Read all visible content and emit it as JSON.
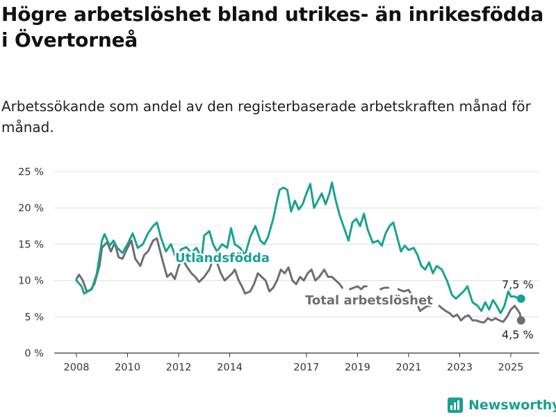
{
  "title": "Högre arbetslöshet bland utrikes- än inrikesfödda i Övertorneå",
  "subtitle": "Arbetssökande som andel av den registerbaserade arbetskraften månad för månad.",
  "brand": {
    "name": "Newsworthy",
    "icon": "bar-chart-logo-icon"
  },
  "colors": {
    "utlandsfodda": "#18a292",
    "total": "#6e6e72",
    "grid": "#dddddd",
    "axis": "#333333"
  },
  "chart_data": {
    "type": "line",
    "y_ticks": [
      {
        "value": 0,
        "label": "0 %"
      },
      {
        "value": 5,
        "label": "5 %"
      },
      {
        "value": 10,
        "label": "10 %"
      },
      {
        "value": 15,
        "label": "15 %"
      },
      {
        "value": 20,
        "label": "20 %"
      },
      {
        "value": 25,
        "label": "25 %"
      }
    ],
    "x_ticks": [
      {
        "value": 2008,
        "label": "2008"
      },
      {
        "value": 2010,
        "label": "2010"
      },
      {
        "value": 2012,
        "label": "2012"
      },
      {
        "value": 2014,
        "label": "2014"
      },
      {
        "value": 2017,
        "label": "2017"
      },
      {
        "value": 2019,
        "label": "2019"
      },
      {
        "value": 2021,
        "label": "2021"
      },
      {
        "value": 2023,
        "label": "2023"
      },
      {
        "value": 2025,
        "label": "2025"
      }
    ],
    "xlim": [
      2008,
      2025.5
    ],
    "ylim": [
      0,
      25
    ],
    "grid": true,
    "series": [
      {
        "name": "Utlandsfödda",
        "end_label": "7,5 %",
        "points": [
          [
            2008.0,
            10
          ],
          [
            2008.2,
            9.2
          ],
          [
            2008.3,
            8.2
          ],
          [
            2008.45,
            8.5
          ],
          [
            2008.6,
            8.8
          ],
          [
            2008.8,
            11
          ],
          [
            2009.0,
            15.5
          ],
          [
            2009.1,
            16.4
          ],
          [
            2009.3,
            14.8
          ],
          [
            2009.45,
            15.5
          ],
          [
            2009.6,
            14.5
          ],
          [
            2009.8,
            13.8
          ],
          [
            2010.0,
            15
          ],
          [
            2010.2,
            16.5
          ],
          [
            2010.4,
            14.5
          ],
          [
            2010.6,
            15
          ],
          [
            2010.8,
            16.5
          ],
          [
            2011.0,
            17.5
          ],
          [
            2011.15,
            18
          ],
          [
            2011.3,
            16
          ],
          [
            2011.5,
            14
          ],
          [
            2011.7,
            15
          ],
          [
            2011.9,
            13
          ],
          [
            2012.1,
            14.3
          ],
          [
            2012.3,
            14.6
          ],
          [
            2012.5,
            13.8
          ],
          [
            2012.7,
            14.5
          ],
          [
            2012.9,
            13
          ],
          [
            2013.0,
            16.2
          ],
          [
            2013.2,
            16.8
          ],
          [
            2013.35,
            15
          ],
          [
            2013.5,
            14
          ],
          [
            2013.7,
            15
          ],
          [
            2013.9,
            14.5
          ],
          [
            2014.05,
            17.2
          ],
          [
            2014.2,
            15
          ],
          [
            2014.4,
            14.5
          ],
          [
            2014.6,
            13.5
          ],
          [
            2014.8,
            16
          ],
          [
            2015.0,
            17.5
          ],
          [
            2015.2,
            15.5
          ],
          [
            2015.35,
            15
          ],
          [
            2015.5,
            16
          ],
          [
            2015.7,
            18.5
          ],
          [
            2015.85,
            21
          ],
          [
            2015.95,
            22.5
          ],
          [
            2016.1,
            22.8
          ],
          [
            2016.25,
            22.5
          ],
          [
            2016.4,
            19.5
          ],
          [
            2016.55,
            21
          ],
          [
            2016.7,
            19.8
          ],
          [
            2016.85,
            20.5
          ],
          [
            2017.0,
            22
          ],
          [
            2017.15,
            23.3
          ],
          [
            2017.3,
            20
          ],
          [
            2017.45,
            21
          ],
          [
            2017.6,
            22
          ],
          [
            2017.75,
            20.5
          ],
          [
            2017.9,
            22
          ],
          [
            2018.0,
            23.5
          ],
          [
            2018.15,
            21
          ],
          [
            2018.3,
            19
          ],
          [
            2018.5,
            17
          ],
          [
            2018.65,
            15.5
          ],
          [
            2018.8,
            18
          ],
          [
            2018.95,
            18.5
          ],
          [
            2019.1,
            17.5
          ],
          [
            2019.25,
            19.2
          ],
          [
            2019.4,
            17
          ],
          [
            2019.6,
            15.2
          ],
          [
            2019.8,
            15.5
          ],
          [
            2019.95,
            14.8
          ],
          [
            2020.1,
            16.5
          ],
          [
            2020.25,
            17.5
          ],
          [
            2020.4,
            18
          ],
          [
            2020.55,
            16
          ],
          [
            2020.7,
            14
          ],
          [
            2020.85,
            14.8
          ],
          [
            2021.0,
            14.2
          ],
          [
            2021.2,
            14.5
          ],
          [
            2021.35,
            13.5
          ],
          [
            2021.5,
            12
          ],
          [
            2021.65,
            11.5
          ],
          [
            2021.8,
            12.5
          ],
          [
            2021.95,
            11
          ],
          [
            2022.1,
            12
          ],
          [
            2022.3,
            11.5
          ],
          [
            2022.5,
            10
          ],
          [
            2022.7,
            8
          ],
          [
            2022.85,
            7.5
          ],
          [
            2023.0,
            8
          ],
          [
            2023.15,
            8.5
          ],
          [
            2023.3,
            9.2
          ],
          [
            2023.5,
            7
          ],
          [
            2023.7,
            6.5
          ],
          [
            2023.85,
            5.8
          ],
          [
            2024.0,
            7
          ],
          [
            2024.15,
            6
          ],
          [
            2024.3,
            7.3
          ],
          [
            2024.45,
            6.5
          ],
          [
            2024.6,
            5.5
          ],
          [
            2024.75,
            6.5
          ],
          [
            2024.9,
            8.5
          ],
          [
            2025.0,
            7.8
          ],
          [
            2025.15,
            7.8
          ],
          [
            2025.3,
            7.5
          ],
          [
            2025.4,
            7.5
          ]
        ]
      },
      {
        "name": "Total arbetslöshet",
        "end_label": "4,5 %",
        "points": [
          [
            2008.0,
            10.2
          ],
          [
            2008.1,
            10.8
          ],
          [
            2008.25,
            10
          ],
          [
            2008.4,
            8.5
          ],
          [
            2008.55,
            8.7
          ],
          [
            2008.7,
            9.5
          ],
          [
            2008.9,
            12
          ],
          [
            2009.0,
            14.5
          ],
          [
            2009.2,
            15.3
          ],
          [
            2009.35,
            14
          ],
          [
            2009.5,
            15.2
          ],
          [
            2009.65,
            13.2
          ],
          [
            2009.8,
            13
          ],
          [
            2010.0,
            14.5
          ],
          [
            2010.15,
            15.5
          ],
          [
            2010.3,
            13
          ],
          [
            2010.5,
            12
          ],
          [
            2010.65,
            13.5
          ],
          [
            2010.8,
            14
          ],
          [
            2011.0,
            15.5
          ],
          [
            2011.15,
            15.8
          ],
          [
            2011.35,
            13
          ],
          [
            2011.55,
            10.5
          ],
          [
            2011.7,
            11
          ],
          [
            2011.85,
            10.2
          ],
          [
            2012.0,
            12
          ],
          [
            2012.15,
            13
          ],
          [
            2012.3,
            12
          ],
          [
            2012.5,
            11
          ],
          [
            2012.65,
            10.5
          ],
          [
            2012.8,
            9.8
          ],
          [
            2013.0,
            10.5
          ],
          [
            2013.2,
            11.5
          ],
          [
            2013.35,
            13
          ],
          [
            2013.5,
            12.5
          ],
          [
            2013.65,
            11
          ],
          [
            2013.8,
            10
          ],
          [
            2013.95,
            10.5
          ],
          [
            2014.1,
            11
          ],
          [
            2014.2,
            11.5
          ],
          [
            2014.35,
            10
          ],
          [
            2014.5,
            9
          ],
          [
            2014.6,
            8.2
          ],
          [
            2014.8,
            8.5
          ],
          [
            2014.95,
            9.5
          ],
          [
            2015.1,
            11
          ],
          [
            2015.25,
            10.5
          ],
          [
            2015.4,
            10
          ],
          [
            2015.55,
            8.5
          ],
          [
            2015.7,
            9
          ],
          [
            2015.85,
            10
          ],
          [
            2016.0,
            11.5
          ],
          [
            2016.15,
            11
          ],
          [
            2016.3,
            11.8
          ],
          [
            2016.45,
            10
          ],
          [
            2016.6,
            9.5
          ],
          [
            2016.75,
            10.5
          ],
          [
            2016.9,
            10
          ],
          [
            2017.05,
            11
          ],
          [
            2017.2,
            11.5
          ],
          [
            2017.35,
            10
          ],
          [
            2017.5,
            10.5
          ],
          [
            2017.7,
            11.5
          ],
          [
            2017.85,
            10.5
          ],
          [
            2018.0,
            10.5
          ],
          [
            2018.15,
            10
          ],
          [
            2018.3,
            9.5
          ],
          [
            2018.4,
            9
          ],
          null,
          [
            2018.7,
            8.8
          ],
          [
            2018.85,
            9
          ],
          [
            2019.0,
            9.2
          ],
          [
            2019.15,
            8.8
          ],
          [
            2019.25,
            9.2
          ],
          [
            2019.35,
            9.2
          ],
          null,
          [
            2019.9,
            8.8
          ],
          [
            2020.05,
            9
          ],
          [
            2020.2,
            9
          ],
          null,
          [
            2020.6,
            8.8
          ],
          [
            2020.8,
            8.5
          ],
          [
            2021.0,
            8.7
          ],
          [
            2021.15,
            7.8
          ],
          [
            2021.3,
            7
          ],
          [
            2021.45,
            5.8
          ],
          [
            2021.6,
            6.2
          ],
          [
            2021.75,
            6.5
          ],
          [
            2021.85,
            6.5
          ],
          null,
          [
            2022.2,
            6.5
          ],
          [
            2022.3,
            6.2
          ],
          [
            2022.45,
            5.8
          ],
          [
            2022.6,
            5.5
          ],
          [
            2022.75,
            5
          ],
          [
            2022.9,
            5.3
          ],
          [
            2023.05,
            4.5
          ],
          [
            2023.2,
            5
          ],
          [
            2023.35,
            5.2
          ],
          [
            2023.5,
            4.5
          ],
          [
            2023.65,
            4.5
          ],
          [
            2023.8,
            4.3
          ],
          [
            2023.95,
            4.2
          ],
          [
            2024.1,
            4.8
          ],
          [
            2024.25,
            4.5
          ],
          [
            2024.4,
            4.8
          ],
          [
            2024.55,
            4.5
          ],
          [
            2024.7,
            4.3
          ],
          [
            2024.85,
            5
          ],
          [
            2025.0,
            6
          ],
          [
            2025.15,
            6.5
          ],
          [
            2025.25,
            6
          ],
          [
            2025.35,
            5.5
          ],
          [
            2025.4,
            4.5
          ]
        ]
      }
    ]
  }
}
